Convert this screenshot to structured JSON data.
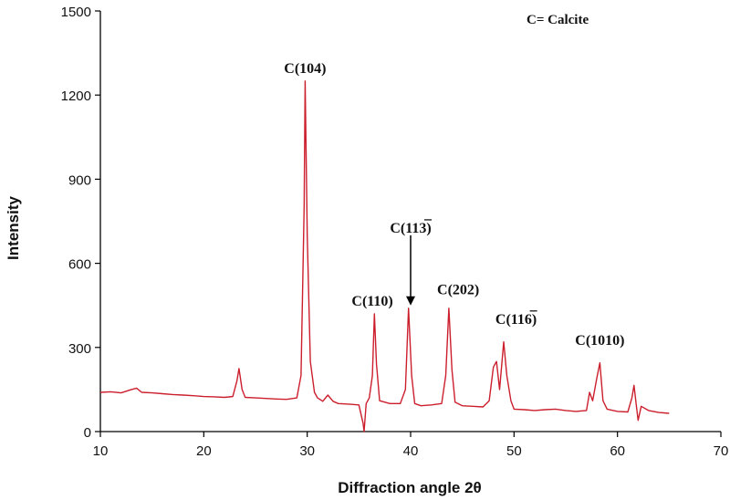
{
  "chart_data": {
    "type": "line",
    "xlabel": "Diffraction angle 2θ",
    "ylabel": "Intensity",
    "xlim": [
      10,
      70
    ],
    "ylim": [
      0,
      1500
    ],
    "xticks": [
      10,
      20,
      30,
      40,
      50,
      60,
      70
    ],
    "yticks": [
      0,
      300,
      600,
      900,
      1200,
      1500
    ],
    "legend_note": "C= Calcite",
    "series_color": "#cc1f2d",
    "grid": false,
    "series": [
      {
        "values": [
          [
            10,
            140
          ],
          [
            11,
            142
          ],
          [
            12,
            138
          ],
          [
            13,
            150
          ],
          [
            13.5,
            155
          ],
          [
            14,
            140
          ],
          [
            15,
            138
          ],
          [
            16,
            135
          ],
          [
            17,
            132
          ],
          [
            18,
            130
          ],
          [
            19,
            128
          ],
          [
            20,
            125
          ],
          [
            21,
            124
          ],
          [
            22,
            122
          ],
          [
            22.8,
            125
          ],
          [
            23.2,
            180
          ],
          [
            23.4,
            225
          ],
          [
            23.7,
            150
          ],
          [
            24,
            122
          ],
          [
            25,
            120
          ],
          [
            26,
            118
          ],
          [
            27,
            116
          ],
          [
            28,
            115
          ],
          [
            29,
            120
          ],
          [
            29.4,
            200
          ],
          [
            29.7,
            800
          ],
          [
            29.8,
            1250
          ],
          [
            30,
            700
          ],
          [
            30.3,
            250
          ],
          [
            30.7,
            140
          ],
          [
            31,
            120
          ],
          [
            31.5,
            108
          ],
          [
            32,
            130
          ],
          [
            32.5,
            108
          ],
          [
            33,
            100
          ],
          [
            34,
            98
          ],
          [
            35,
            95
          ],
          [
            35.4,
            30
          ],
          [
            35.5,
            0
          ],
          [
            35.7,
            100
          ],
          [
            36,
            120
          ],
          [
            36.3,
            200
          ],
          [
            36.5,
            420
          ],
          [
            36.7,
            240
          ],
          [
            37,
            110
          ],
          [
            38,
            100
          ],
          [
            39,
            100
          ],
          [
            39.5,
            150
          ],
          [
            39.8,
            440
          ],
          [
            40.1,
            200
          ],
          [
            40.4,
            100
          ],
          [
            41,
            92
          ],
          [
            42,
            95
          ],
          [
            43,
            100
          ],
          [
            43.4,
            200
          ],
          [
            43.7,
            440
          ],
          [
            44,
            220
          ],
          [
            44.3,
            105
          ],
          [
            45,
            92
          ],
          [
            46,
            90
          ],
          [
            47,
            88
          ],
          [
            47.6,
            110
          ],
          [
            48,
            230
          ],
          [
            48.3,
            250
          ],
          [
            48.6,
            150
          ],
          [
            49,
            320
          ],
          [
            49.3,
            200
          ],
          [
            49.7,
            110
          ],
          [
            50,
            80
          ],
          [
            51,
            78
          ],
          [
            52,
            75
          ],
          [
            53,
            78
          ],
          [
            54,
            80
          ],
          [
            55,
            75
          ],
          [
            56,
            72
          ],
          [
            57,
            75
          ],
          [
            57.3,
            140
          ],
          [
            57.6,
            110
          ],
          [
            58,
            190
          ],
          [
            58.3,
            245
          ],
          [
            58.6,
            110
          ],
          [
            59,
            80
          ],
          [
            60,
            72
          ],
          [
            61,
            70
          ],
          [
            61.4,
            120
          ],
          [
            61.6,
            165
          ],
          [
            61.8,
            100
          ],
          [
            62,
            40
          ],
          [
            62.3,
            90
          ],
          [
            63,
            75
          ],
          [
            64,
            68
          ],
          [
            65,
            65
          ]
        ]
      }
    ],
    "annotations": [
      {
        "text": "C(104)",
        "x": 29.8,
        "y": 1260
      },
      {
        "text": "C(110)",
        "x": 36.3,
        "y": 430
      },
      {
        "text": "C(113)",
        "x": 40.0,
        "y": 690
      },
      {
        "text": "C(202)",
        "x": 44.6,
        "y": 470
      },
      {
        "text": "C(116)",
        "x": 50.2,
        "y": 365
      },
      {
        "text": "C(1010)",
        "x": 58.3,
        "y": 290
      }
    ],
    "arrow": {
      "x": 40.0,
      "y_start": 700,
      "y_end": 450
    }
  }
}
